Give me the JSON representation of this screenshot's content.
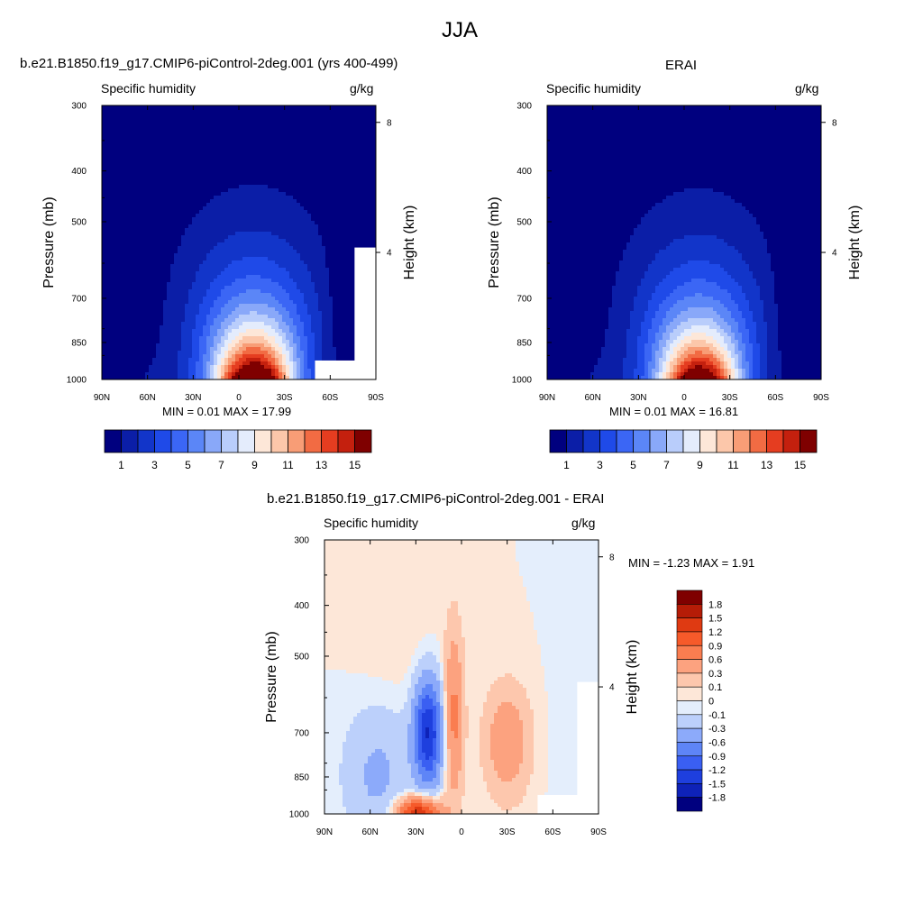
{
  "figure": {
    "title": "JJA"
  },
  "chart_data": [
    {
      "type": "heatmap",
      "panel_title": "b.e21.B1850.f19_g17.CMIP6-piControl-2deg.001 (yrs 400-499)",
      "left_label": "Specific humidity",
      "right_label": "g/kg",
      "ylabel": "Pressure (mb)",
      "ylabel_right": "Height (km)",
      "x_ticks": [
        "90N",
        "60N",
        "30N",
        "0",
        "30S",
        "60S",
        "90S"
      ],
      "x_values": [
        90,
        60,
        30,
        0,
        -30,
        -60,
        -90
      ],
      "y_ticks": [
        "300",
        "400",
        "500",
        "700",
        "850",
        "1000"
      ],
      "y_values": [
        300,
        400,
        500,
        700,
        850,
        1000
      ],
      "y_scale": "log",
      "y_ticks_right": [
        "8",
        "4"
      ],
      "y_values_right": [
        8,
        4
      ],
      "min_label": "MIN =   0.01  MAX =  17.99",
      "min": 0.01,
      "max": 17.99,
      "peak_latitude": -10,
      "colorbar": {
        "levels": [
          1,
          2,
          3,
          4,
          5,
          6,
          7,
          8,
          9,
          10,
          11,
          12,
          13,
          14,
          15
        ],
        "tick_labels": [
          "1",
          "3",
          "5",
          "7",
          "9",
          "11",
          "13",
          "15"
        ],
        "colors": [
          "#00007f",
          "#0b1ea7",
          "#1235c9",
          "#1f4ae8",
          "#3b66f5",
          "#5b86f7",
          "#89a8f9",
          "#b9cdfb",
          "#e4ecfc",
          "#fde7d8",
          "#fcc7aa",
          "#f89d76",
          "#f26b43",
          "#e53d20",
          "#c4200e",
          "#7f0000"
        ]
      }
    },
    {
      "type": "heatmap",
      "panel_title": "ERAI",
      "left_label": "Specific humidity",
      "right_label": "g/kg",
      "ylabel": "Pressure (mb)",
      "ylabel_right": "Height (km)",
      "x_ticks": [
        "90N",
        "60N",
        "30N",
        "0",
        "30S",
        "60S",
        "90S"
      ],
      "x_values": [
        90,
        60,
        30,
        0,
        -30,
        -60,
        -90
      ],
      "y_ticks": [
        "300",
        "400",
        "500",
        "700",
        "850",
        "1000"
      ],
      "y_values": [
        300,
        400,
        500,
        700,
        850,
        1000
      ],
      "y_scale": "log",
      "y_ticks_right": [
        "8",
        "4"
      ],
      "y_values_right": [
        8,
        4
      ],
      "min_label": "MIN =   0.01  MAX =  16.81",
      "min": 0.01,
      "max": 16.81,
      "peak_latitude": -10,
      "colorbar": {
        "levels": [
          1,
          2,
          3,
          4,
          5,
          6,
          7,
          8,
          9,
          10,
          11,
          12,
          13,
          14,
          15
        ],
        "tick_labels": [
          "1",
          "3",
          "5",
          "7",
          "9",
          "11",
          "13",
          "15"
        ],
        "colors": [
          "#00007f",
          "#0b1ea7",
          "#1235c9",
          "#1f4ae8",
          "#3b66f5",
          "#5b86f7",
          "#89a8f9",
          "#b9cdfb",
          "#e4ecfc",
          "#fde7d8",
          "#fcc7aa",
          "#f89d76",
          "#f26b43",
          "#e53d20",
          "#c4200e",
          "#7f0000"
        ]
      }
    },
    {
      "type": "heatmap",
      "panel_title": "b.e21.B1850.f19_g17.CMIP6-piControl-2deg.001 - ERAI",
      "left_label": "Specific humidity",
      "right_label": "g/kg",
      "ylabel": "Pressure (mb)",
      "ylabel_right": "Height (km)",
      "x_ticks": [
        "90N",
        "60N",
        "30N",
        "0",
        "30S",
        "60S",
        "90S"
      ],
      "x_values": [
        90,
        60,
        30,
        0,
        -30,
        -60,
        -90
      ],
      "y_ticks": [
        "300",
        "400",
        "500",
        "700",
        "850",
        "1000"
      ],
      "y_values": [
        300,
        400,
        500,
        700,
        850,
        1000
      ],
      "y_scale": "log",
      "y_ticks_right": [
        "8",
        "4"
      ],
      "y_values_right": [
        8,
        4
      ],
      "min_label": "MIN =  -1.23  MAX =   1.91",
      "min": -1.23,
      "max": 1.91,
      "colorbar": {
        "tick_labels": [
          "1.8",
          "1.5",
          "1.2",
          "0.9",
          "0.6",
          "0.3",
          "0.1",
          "0",
          "-0.1",
          "-0.3",
          "-0.6",
          "-0.9",
          "-1.2",
          "-1.5",
          "-1.8"
        ],
        "levels": [
          1.8,
          1.5,
          1.2,
          0.9,
          0.6,
          0.3,
          0.1,
          0,
          -0.1,
          -0.3,
          -0.6,
          -0.9,
          -1.2,
          -1.5,
          -1.8
        ],
        "colors": [
          "#7f0000",
          "#b51c07",
          "#df3a12",
          "#f65a2a",
          "#fa7d50",
          "#fca27f",
          "#fdc7ad",
          "#fde7d8",
          "#e4eefc",
          "#bcd0fb",
          "#8caafa",
          "#5e85f7",
          "#3a5ff2",
          "#1e3fde",
          "#0e22b8",
          "#00007f"
        ]
      }
    }
  ]
}
